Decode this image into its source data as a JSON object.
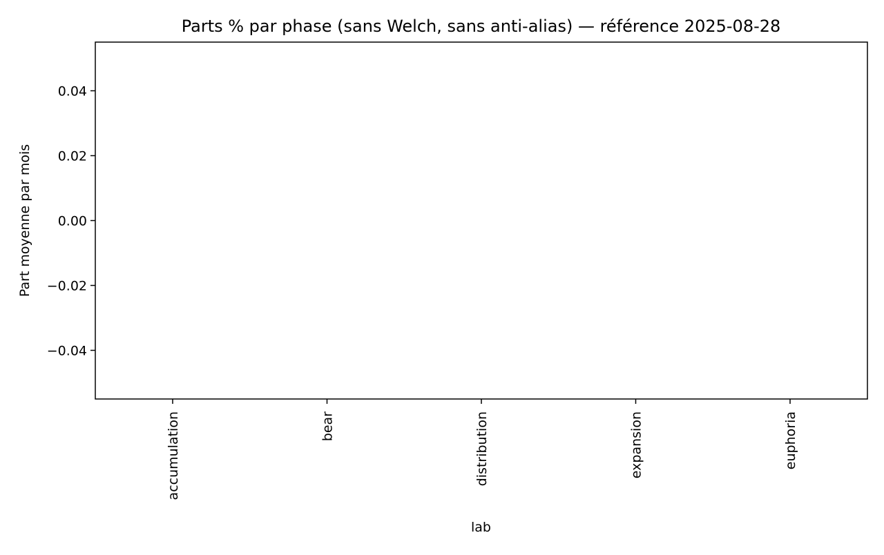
{
  "chart_data": {
    "type": "bar",
    "title": "Parts % par phase (sans Welch, sans anti-alias) — référence 2025-08-28",
    "xlabel": "lab",
    "ylabel": "Part moyenne par mois",
    "categories": [
      "accumulation",
      "bear",
      "distribution",
      "expansion",
      "euphoria"
    ],
    "series": [
      {
        "values": [
          null,
          null,
          null,
          null,
          null
        ]
      }
    ],
    "ylim": [
      -0.055,
      0.055
    ],
    "yticks": [
      -0.04,
      -0.02,
      0.0,
      0.02,
      0.04
    ],
    "ytick_labels": [
      "−0.04",
      "−0.02",
      "0.00",
      "0.02",
      "0.04"
    ],
    "grid": false,
    "legend": "none",
    "colors": {
      "axis": "#000000",
      "background": "#ffffff"
    }
  }
}
